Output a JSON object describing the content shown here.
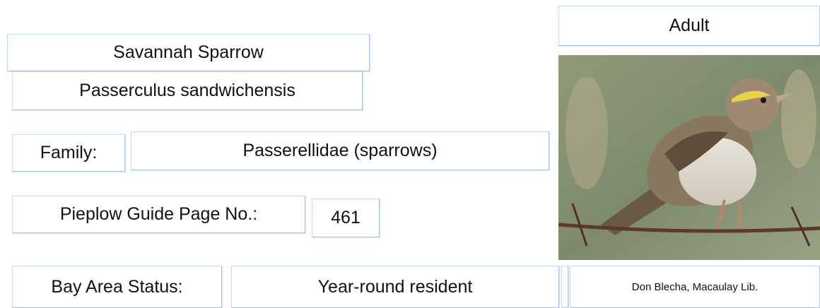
{
  "species": {
    "common_name": "Savannah Sparrow",
    "scientific_name": "Passerculus sandwichensis"
  },
  "family": {
    "label": "Family:",
    "value": "Passerellidae (sparrows)"
  },
  "guide_page": {
    "label": "Pieplow Guide Page No.:",
    "value": "461"
  },
  "status": {
    "label": "Bay Area Status:",
    "value": "Year-round resident"
  },
  "photo": {
    "caption": "Adult",
    "credit": "Don Blecha, Macaulay Lib."
  }
}
